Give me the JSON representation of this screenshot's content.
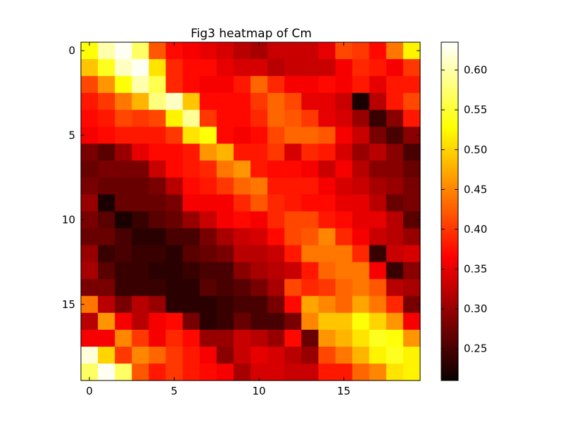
{
  "chart_data": {
    "type": "heatmap",
    "title": "Fig3 heatmap of Cm",
    "xlabel": "",
    "ylabel": "",
    "x_ticks": [
      0,
      5,
      10,
      15
    ],
    "y_ticks": [
      0,
      5,
      10,
      15
    ],
    "x_tick_labels": [
      "0",
      "5",
      "10",
      "15"
    ],
    "y_tick_labels": [
      "0",
      "5",
      "10",
      "15"
    ],
    "colormap": "hot",
    "colorbar_ticks": [
      0.25,
      0.3,
      0.35,
      0.4,
      0.45,
      0.5,
      0.55,
      0.6
    ],
    "colorbar_tick_labels": [
      "0.25",
      "0.30",
      "0.35",
      "0.40",
      "0.45",
      "0.50",
      "0.55",
      "0.60"
    ],
    "vmin": 0.21,
    "vmax": 0.635,
    "rows": 20,
    "cols": 20,
    "values": [
      [
        0.53,
        0.6,
        0.63,
        0.57,
        0.42,
        0.37,
        0.36,
        0.35,
        0.34,
        0.32,
        0.31,
        0.33,
        0.33,
        0.33,
        0.35,
        0.41,
        0.4,
        0.37,
        0.44,
        0.52
      ],
      [
        0.49,
        0.54,
        0.61,
        0.63,
        0.51,
        0.39,
        0.37,
        0.37,
        0.35,
        0.34,
        0.34,
        0.32,
        0.33,
        0.33,
        0.33,
        0.36,
        0.39,
        0.38,
        0.36,
        0.4
      ],
      [
        0.41,
        0.46,
        0.53,
        0.6,
        0.56,
        0.39,
        0.37,
        0.36,
        0.36,
        0.38,
        0.43,
        0.39,
        0.36,
        0.36,
        0.37,
        0.36,
        0.38,
        0.35,
        0.38,
        0.38
      ],
      [
        0.38,
        0.4,
        0.44,
        0.48,
        0.58,
        0.61,
        0.49,
        0.37,
        0.37,
        0.37,
        0.4,
        0.43,
        0.41,
        0.35,
        0.35,
        0.33,
        0.22,
        0.32,
        0.38,
        0.41
      ],
      [
        0.37,
        0.38,
        0.41,
        0.4,
        0.41,
        0.52,
        0.59,
        0.4,
        0.37,
        0.37,
        0.39,
        0.43,
        0.42,
        0.4,
        0.35,
        0.34,
        0.3,
        0.24,
        0.29,
        0.38
      ],
      [
        0.36,
        0.37,
        0.38,
        0.38,
        0.38,
        0.4,
        0.51,
        0.53,
        0.37,
        0.36,
        0.37,
        0.41,
        0.43,
        0.43,
        0.42,
        0.36,
        0.33,
        0.28,
        0.25,
        0.29
      ],
      [
        0.28,
        0.26,
        0.3,
        0.35,
        0.37,
        0.37,
        0.38,
        0.46,
        0.48,
        0.38,
        0.38,
        0.4,
        0.34,
        0.39,
        0.38,
        0.34,
        0.3,
        0.32,
        0.29,
        0.25
      ],
      [
        0.27,
        0.28,
        0.28,
        0.28,
        0.33,
        0.37,
        0.38,
        0.39,
        0.44,
        0.46,
        0.38,
        0.37,
        0.37,
        0.36,
        0.33,
        0.36,
        0.32,
        0.29,
        0.29,
        0.27
      ],
      [
        0.28,
        0.27,
        0.27,
        0.27,
        0.28,
        0.32,
        0.37,
        0.38,
        0.4,
        0.43,
        0.44,
        0.38,
        0.38,
        0.38,
        0.36,
        0.34,
        0.33,
        0.31,
        0.3,
        0.28
      ],
      [
        0.3,
        0.22,
        0.27,
        0.27,
        0.27,
        0.28,
        0.36,
        0.36,
        0.36,
        0.39,
        0.42,
        0.39,
        0.38,
        0.37,
        0.37,
        0.35,
        0.35,
        0.32,
        0.27,
        0.28
      ],
      [
        0.28,
        0.26,
        0.22,
        0.24,
        0.26,
        0.27,
        0.3,
        0.33,
        0.36,
        0.37,
        0.36,
        0.39,
        0.41,
        0.41,
        0.38,
        0.37,
        0.35,
        0.35,
        0.32,
        0.26
      ],
      [
        0.27,
        0.27,
        0.25,
        0.23,
        0.23,
        0.25,
        0.25,
        0.28,
        0.31,
        0.33,
        0.34,
        0.37,
        0.41,
        0.42,
        0.45,
        0.39,
        0.36,
        0.33,
        0.32,
        0.3
      ],
      [
        0.3,
        0.24,
        0.25,
        0.24,
        0.24,
        0.23,
        0.26,
        0.27,
        0.28,
        0.32,
        0.32,
        0.33,
        0.38,
        0.44,
        0.44,
        0.44,
        0.39,
        0.24,
        0.33,
        0.34
      ],
      [
        0.31,
        0.26,
        0.24,
        0.24,
        0.23,
        0.23,
        0.24,
        0.25,
        0.25,
        0.29,
        0.31,
        0.32,
        0.33,
        0.38,
        0.43,
        0.44,
        0.44,
        0.36,
        0.24,
        0.29
      ],
      [
        0.28,
        0.28,
        0.24,
        0.24,
        0.24,
        0.23,
        0.23,
        0.26,
        0.25,
        0.26,
        0.28,
        0.31,
        0.41,
        0.39,
        0.4,
        0.43,
        0.44,
        0.42,
        0.32,
        0.31
      ],
      [
        0.44,
        0.32,
        0.28,
        0.32,
        0.3,
        0.23,
        0.23,
        0.23,
        0.24,
        0.25,
        0.25,
        0.28,
        0.37,
        0.47,
        0.45,
        0.43,
        0.47,
        0.44,
        0.39,
        0.28
      ],
      [
        0.32,
        0.46,
        0.36,
        0.32,
        0.36,
        0.37,
        0.28,
        0.23,
        0.24,
        0.27,
        0.25,
        0.25,
        0.28,
        0.45,
        0.49,
        0.49,
        0.53,
        0.5,
        0.46,
        0.36
      ],
      [
        0.36,
        0.36,
        0.45,
        0.4,
        0.36,
        0.39,
        0.37,
        0.3,
        0.3,
        0.33,
        0.32,
        0.3,
        0.37,
        0.27,
        0.46,
        0.48,
        0.51,
        0.54,
        0.53,
        0.46
      ],
      [
        0.62,
        0.5,
        0.4,
        0.45,
        0.43,
        0.4,
        0.38,
        0.36,
        0.29,
        0.33,
        0.35,
        0.34,
        0.32,
        0.3,
        0.41,
        0.44,
        0.48,
        0.52,
        0.54,
        0.52
      ],
      [
        0.57,
        0.63,
        0.57,
        0.42,
        0.38,
        0.4,
        0.38,
        0.37,
        0.36,
        0.31,
        0.34,
        0.34,
        0.33,
        0.33,
        0.38,
        0.38,
        0.43,
        0.45,
        0.51,
        0.52
      ]
    ]
  }
}
